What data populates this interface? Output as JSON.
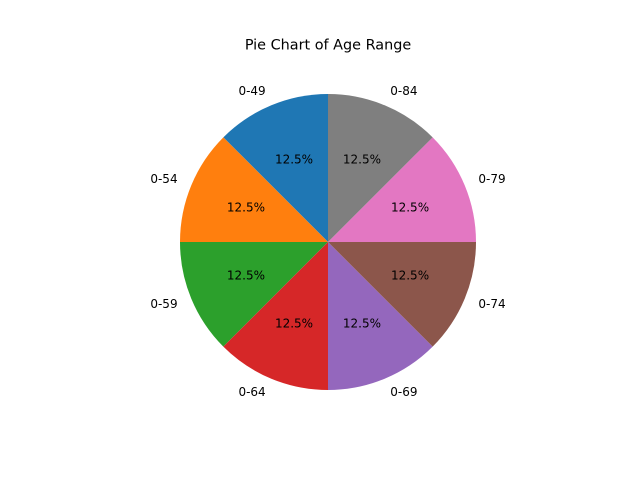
{
  "chart_data": {
    "type": "pie",
    "title": "Pie Chart of Age Range",
    "categories": [
      "0-49",
      "0-54",
      "0-59",
      "0-64",
      "0-69",
      "0-74",
      "0-79",
      "0-84"
    ],
    "values": [
      12.5,
      12.5,
      12.5,
      12.5,
      12.5,
      12.5,
      12.5,
      12.5
    ],
    "percent_labels": [
      "12.5%",
      "12.5%",
      "12.5%",
      "12.5%",
      "12.5%",
      "12.5%",
      "12.5%",
      "12.5%"
    ],
    "colors": [
      "#1f77b4",
      "#ff7f0e",
      "#2ca02c",
      "#d62728",
      "#9467bd",
      "#8c564b",
      "#e377c2",
      "#7f7f7f"
    ],
    "start_angle_deg": 90,
    "direction": "counterclockwise",
    "legend": "none"
  }
}
